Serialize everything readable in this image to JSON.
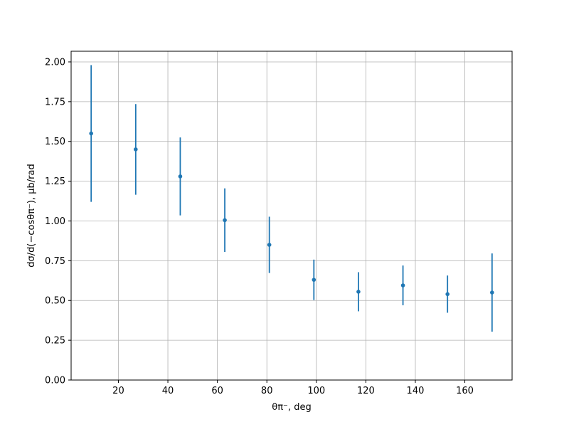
{
  "chart_data": {
    "type": "errorbar",
    "xlabel": "θπ⁻, deg",
    "ylabel": "dσ/d(−cosθπ⁻), μb/rad",
    "x": [
      9,
      27,
      45,
      63,
      81,
      99,
      117,
      135,
      153,
      171
    ],
    "series": [
      {
        "color": "#1f77b4",
        "values": [
          1.55,
          1.45,
          1.28,
          1.005,
          0.85,
          0.63,
          0.555,
          0.595,
          0.54,
          0.55
        ],
        "errors": [
          0.43,
          0.285,
          0.245,
          0.2,
          0.177,
          0.127,
          0.123,
          0.125,
          0.117,
          0.246
        ]
      }
    ],
    "xlim": [
      0.9,
      179.1
    ],
    "ylim": [
      0,
      2.067
    ],
    "xticks": [
      20,
      40,
      60,
      80,
      100,
      120,
      140,
      160
    ],
    "yticks": [
      {
        "value": 0,
        "label": "0.00"
      },
      {
        "value": 0.25,
        "label": "0.25"
      },
      {
        "value": 0.5,
        "label": "0.50"
      },
      {
        "value": 0.75,
        "label": "0.75"
      },
      {
        "value": 1,
        "label": "1.00"
      },
      {
        "value": 1.25,
        "label": "1.25"
      },
      {
        "value": 1.5,
        "label": "1.50"
      },
      {
        "value": 1.75,
        "label": "1.75"
      },
      {
        "value": 2,
        "label": "2.00"
      }
    ],
    "grid": true
  }
}
